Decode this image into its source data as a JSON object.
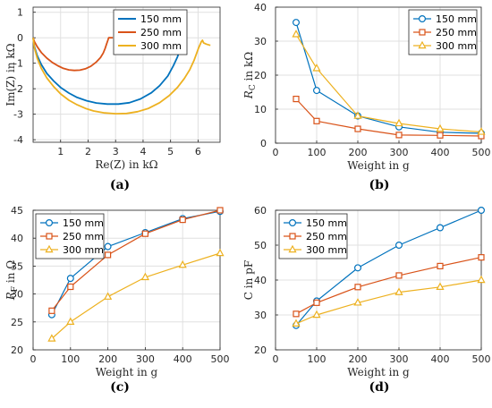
{
  "colors": {
    "series": [
      "#0072BD",
      "#D95319",
      "#EDB120"
    ],
    "axis": "#262626",
    "grid": "#e0e0e0"
  },
  "panels": [
    {
      "label": "(a)"
    },
    {
      "label": "(b)"
    },
    {
      "label": "(c)"
    },
    {
      "label": "(d)"
    }
  ],
  "chart_data": [
    {
      "type": "line",
      "xlabel": "Re(Z) in kΩ",
      "ylabel": "Im(Z) in kΩ",
      "xlim": [
        0,
        6.8
      ],
      "ylim": [
        -4.1,
        1.2
      ],
      "xticks": [
        1,
        2,
        3,
        4,
        5,
        6
      ],
      "yticks": [
        1,
        0,
        -1,
        -2,
        -3,
        -4
      ],
      "grid": true,
      "legend": "top-center",
      "series": [
        {
          "name": "150 mm",
          "marker": "none",
          "x": [
            0.0,
            0.05,
            0.15,
            0.3,
            0.5,
            0.75,
            1.0,
            1.3,
            1.6,
            1.95,
            2.3,
            2.7,
            3.1,
            3.5,
            3.9,
            4.3,
            4.6,
            4.9,
            5.1,
            5.25,
            5.35,
            5.42,
            5.48,
            5.52,
            5.55
          ],
          "y": [
            0.0,
            -0.35,
            -0.7,
            -1.05,
            -1.4,
            -1.7,
            -1.95,
            -2.17,
            -2.34,
            -2.47,
            -2.56,
            -2.6,
            -2.6,
            -2.55,
            -2.4,
            -2.16,
            -1.88,
            -1.5,
            -1.1,
            -0.75,
            -0.45,
            -0.25,
            -0.1,
            0.0,
            0.0
          ]
        },
        {
          "name": "250 mm",
          "marker": "none",
          "x": [
            0.0,
            0.05,
            0.15,
            0.3,
            0.5,
            0.7,
            0.9,
            1.1,
            1.3,
            1.5,
            1.7,
            1.9,
            2.1,
            2.3,
            2.45,
            2.55,
            2.62,
            2.67,
            2.72,
            2.75,
            2.8,
            2.9
          ],
          "y": [
            0.0,
            -0.15,
            -0.35,
            -0.58,
            -0.8,
            -0.97,
            -1.1,
            -1.2,
            -1.26,
            -1.28,
            -1.27,
            -1.22,
            -1.12,
            -0.95,
            -0.78,
            -0.6,
            -0.42,
            -0.25,
            -0.1,
            0.0,
            0.0,
            0.0
          ]
        },
        {
          "name": "300 mm",
          "marker": "none",
          "x": [
            0.0,
            0.05,
            0.15,
            0.3,
            0.5,
            0.75,
            1.0,
            1.3,
            1.6,
            1.9,
            2.2,
            2.6,
            3.0,
            3.4,
            3.8,
            4.2,
            4.6,
            4.95,
            5.25,
            5.5,
            5.7,
            5.85,
            5.95,
            6.02,
            6.08,
            6.12,
            6.16,
            6.2,
            6.3,
            6.45
          ],
          "y": [
            0.0,
            -0.4,
            -0.8,
            -1.2,
            -1.58,
            -1.92,
            -2.2,
            -2.45,
            -2.63,
            -2.77,
            -2.87,
            -2.95,
            -2.98,
            -2.97,
            -2.9,
            -2.77,
            -2.55,
            -2.27,
            -1.95,
            -1.6,
            -1.25,
            -0.9,
            -0.6,
            -0.4,
            -0.25,
            -0.15,
            -0.1,
            -0.2,
            -0.25,
            -0.3
          ]
        }
      ]
    },
    {
      "type": "line",
      "xlabel": "Weight in g",
      "ylabel": "R_C in kΩ",
      "xlim": [
        0,
        500
      ],
      "ylim": [
        0,
        40
      ],
      "xticks": [
        0,
        100,
        200,
        300,
        400,
        500
      ],
      "yticks": [
        0,
        10,
        20,
        30,
        40
      ],
      "grid": true,
      "legend": "top-right",
      "x": [
        50,
        100,
        200,
        300,
        400,
        500
      ],
      "series": [
        {
          "name": "150 mm",
          "marker": "circle",
          "values": [
            35.5,
            15.5,
            8.0,
            4.8,
            3.2,
            2.9
          ]
        },
        {
          "name": "250 mm",
          "marker": "square",
          "values": [
            13.0,
            6.5,
            4.2,
            2.4,
            2.3,
            2.1
          ]
        },
        {
          "name": "300 mm",
          "marker": "triangle",
          "values": [
            32.0,
            22.0,
            8.0,
            5.8,
            4.2,
            3.3
          ]
        }
      ]
    },
    {
      "type": "line",
      "xlabel": "Weight in g",
      "ylabel": "R_F in Ω",
      "xlim": [
        0,
        500
      ],
      "ylim": [
        20,
        45
      ],
      "xticks": [
        0,
        100,
        200,
        300,
        400,
        500
      ],
      "yticks": [
        20,
        25,
        30,
        35,
        40,
        45
      ],
      "grid": true,
      "legend": "top-left",
      "x": [
        50,
        100,
        200,
        300,
        400,
        500
      ],
      "series": [
        {
          "name": "150 mm",
          "marker": "circle",
          "values": [
            26.3,
            32.8,
            38.5,
            41.0,
            43.5,
            44.8
          ]
        },
        {
          "name": "250 mm",
          "marker": "square",
          "values": [
            27.0,
            31.3,
            37.0,
            40.8,
            43.3,
            45.0
          ]
        },
        {
          "name": "300 mm",
          "marker": "triangle",
          "values": [
            22.0,
            25.0,
            29.5,
            33.0,
            35.2,
            37.3
          ]
        }
      ]
    },
    {
      "type": "line",
      "xlabel": "Weight in g",
      "ylabel": "C in pF",
      "xlim": [
        0,
        500
      ],
      "ylim": [
        20,
        60
      ],
      "xticks": [
        0,
        100,
        200,
        300,
        400,
        500
      ],
      "yticks": [
        20,
        30,
        40,
        50,
        60
      ],
      "grid": true,
      "legend": "top-left",
      "x": [
        50,
        100,
        200,
        300,
        400,
        500
      ],
      "series": [
        {
          "name": "150 mm",
          "marker": "circle",
          "values": [
            27.0,
            34.0,
            43.5,
            50.0,
            55.0,
            60.0
          ]
        },
        {
          "name": "250 mm",
          "marker": "square",
          "values": [
            30.3,
            33.5,
            38.0,
            41.3,
            44.0,
            46.5
          ]
        },
        {
          "name": "300 mm",
          "marker": "triangle",
          "values": [
            27.5,
            30.0,
            33.5,
            36.5,
            38.0,
            40.0
          ]
        }
      ]
    }
  ]
}
